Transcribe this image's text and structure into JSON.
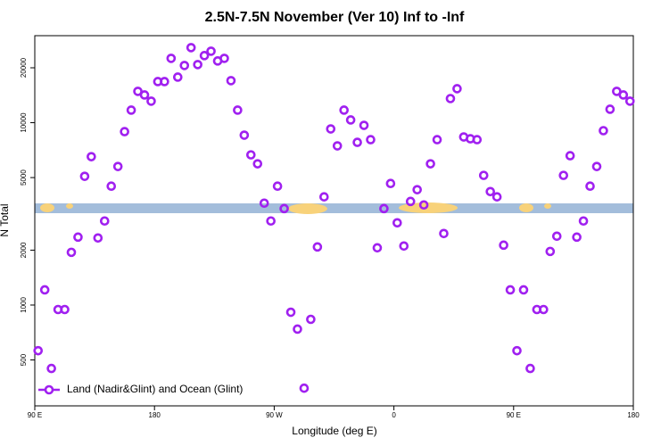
{
  "chart_data": {
    "type": "scatter",
    "title": "2.5N-7.5N November (Ver 10)   Inf to -Inf",
    "xlabel": "Longitude (deg E)",
    "ylabel": "N Total",
    "xlim": [
      90,
      540
    ],
    "ylim": [
      280,
      30000
    ],
    "yscale": "log",
    "legend": "bottom-left",
    "xticks": [
      {
        "value": 90,
        "label": "90 E"
      },
      {
        "value": 180,
        "label": "180"
      },
      {
        "value": 270,
        "label": "90 W"
      },
      {
        "value": 360,
        "label": "0"
      },
      {
        "value": 450,
        "label": "90 E"
      },
      {
        "value": 540,
        "label": "180"
      }
    ],
    "yticks": [
      500,
      1000,
      2000,
      5000,
      10000,
      20000
    ],
    "series": [
      {
        "name": "Land (Nadir&Glint) and Ocean (Glint)",
        "color": "#a020f0",
        "x": [
          92.5,
          97.5,
          102.5,
          107.5,
          112.5,
          117.5,
          122.5,
          127.5,
          132.5,
          137.5,
          142.5,
          147.5,
          152.5,
          157.5,
          162.5,
          167.5,
          172.5,
          177.5,
          182.5,
          187.5,
          192.5,
          197.5,
          202.5,
          207.5,
          212.5,
          217.5,
          222.5,
          227.5,
          232.5,
          237.5,
          242.5,
          247.5,
          252.5,
          257.5,
          262.5,
          267.5,
          272.5,
          277.5,
          282.5,
          287.5,
          292.5,
          297.5,
          302.5,
          307.5,
          312.5,
          317.5,
          322.5,
          327.5,
          332.5,
          337.5,
          342.5,
          347.5,
          352.5,
          357.5,
          362.5,
          367.5,
          372.5,
          377.5,
          382.5,
          387.5,
          392.5,
          397.5,
          402.5,
          407.5,
          412.5,
          417.5,
          422.5,
          427.5,
          432.5,
          437.5,
          442.5,
          447.5,
          452.5,
          457.5,
          462.5,
          467.5,
          472.5,
          477.5,
          482.5,
          487.5,
          492.5,
          497.5,
          502.5,
          507.5,
          512.5,
          517.5,
          522.5,
          527.5,
          532.5,
          537.5
        ],
        "values": [
          562,
          1211,
          449,
          945,
          945,
          1946,
          2358,
          5080,
          6510,
          2333,
          2890,
          4487,
          5750,
          8930,
          11720,
          14850,
          14190,
          13120,
          16800,
          16800,
          22530,
          17780,
          20590,
          25800,
          20830,
          23330,
          24660,
          21800,
          22530,
          17000,
          11720,
          8540,
          6660,
          5950,
          3620,
          2890,
          4487,
          3380,
          913,
          738,
          350,
          835,
          2083,
          3920,
          9240,
          7460,
          11720,
          10350,
          7800,
          9670,
          8070,
          2060,
          3380,
          4640,
          2825,
          2107,
          3700,
          4290,
          3540,
          5950,
          8070,
          2467,
          13560,
          15360,
          8350,
          8160,
          8070,
          5140,
          4190,
          3920,
          2130,
          1211,
          562,
          1211,
          449,
          945,
          945,
          1968,
          2385,
          5140,
          6590,
          2358,
          2890,
          4487,
          5750,
          9040,
          11850,
          14850,
          14190,
          13120
        ]
      }
    ]
  }
}
